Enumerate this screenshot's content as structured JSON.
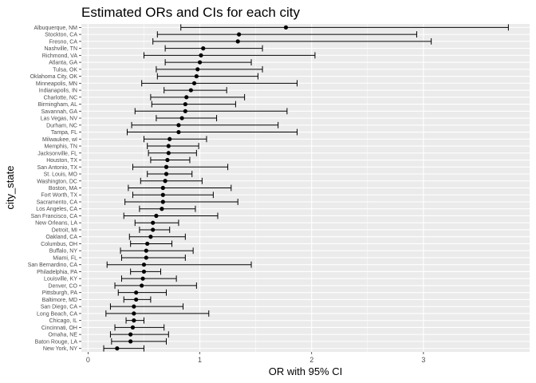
{
  "chart_data": {
    "type": "scatter",
    "title": "Estimated ORs and CIs for each city",
    "xlabel": "OR with 95% CI",
    "ylabel": "city_state",
    "xlim": [
      -0.06,
      3.95
    ],
    "xticks": [
      0,
      1,
      2,
      3
    ],
    "grid": true,
    "background_color": "#ebebeb",
    "grid_color": "#ffffff",
    "point_color": "#000000",
    "points": [
      {
        "city": "Albuquerque, NM",
        "or": 1.77,
        "lo": 0.83,
        "hi": 3.76
      },
      {
        "city": "Stockton, CA",
        "or": 1.35,
        "lo": 0.62,
        "hi": 2.94
      },
      {
        "city": "Fresno, CA",
        "or": 1.34,
        "lo": 0.58,
        "hi": 3.07
      },
      {
        "city": "Nashville, TN",
        "or": 1.03,
        "lo": 0.69,
        "hi": 1.56
      },
      {
        "city": "Richmond, VA",
        "or": 1.01,
        "lo": 0.5,
        "hi": 2.03
      },
      {
        "city": "Atlanta, GA",
        "or": 1.0,
        "lo": 0.69,
        "hi": 1.46
      },
      {
        "city": "Tulsa, OK",
        "or": 0.98,
        "lo": 0.61,
        "hi": 1.56
      },
      {
        "city": "Oklahoma City, OK",
        "or": 0.97,
        "lo": 0.62,
        "hi": 1.52
      },
      {
        "city": "Minneapolis, MN",
        "or": 0.95,
        "lo": 0.48,
        "hi": 1.87
      },
      {
        "city": "Indianapolis, IN",
        "or": 0.92,
        "lo": 0.68,
        "hi": 1.24
      },
      {
        "city": "Charlotte, NC",
        "or": 0.88,
        "lo": 0.56,
        "hi": 1.4
      },
      {
        "city": "Birmingham, AL",
        "or": 0.87,
        "lo": 0.57,
        "hi": 1.32
      },
      {
        "city": "Savannah, GA",
        "or": 0.87,
        "lo": 0.42,
        "hi": 1.78
      },
      {
        "city": "Las Vegas, NV",
        "or": 0.84,
        "lo": 0.61,
        "hi": 1.15
      },
      {
        "city": "Durham, NC",
        "or": 0.81,
        "lo": 0.39,
        "hi": 1.7
      },
      {
        "city": "Tampa, FL",
        "or": 0.81,
        "lo": 0.35,
        "hi": 1.87
      },
      {
        "city": "Milwaukee, wI",
        "or": 0.73,
        "lo": 0.5,
        "hi": 1.06
      },
      {
        "city": "Memphis, TN",
        "or": 0.72,
        "lo": 0.53,
        "hi": 0.99
      },
      {
        "city": "Jacksonville, FL",
        "or": 0.72,
        "lo": 0.54,
        "hi": 0.97
      },
      {
        "city": "Houston, TX",
        "or": 0.71,
        "lo": 0.56,
        "hi": 0.91
      },
      {
        "city": "San Antonio, TX",
        "or": 0.7,
        "lo": 0.4,
        "hi": 1.25
      },
      {
        "city": "St. Louis, MO",
        "or": 0.7,
        "lo": 0.53,
        "hi": 0.93
      },
      {
        "city": "Washington, DC",
        "or": 0.69,
        "lo": 0.47,
        "hi": 1.02
      },
      {
        "city": "Boston, MA",
        "or": 0.67,
        "lo": 0.36,
        "hi": 1.28
      },
      {
        "city": "Fort Worth, TX",
        "or": 0.67,
        "lo": 0.4,
        "hi": 1.12
      },
      {
        "city": "Sacramento, CA",
        "or": 0.67,
        "lo": 0.33,
        "hi": 1.34
      },
      {
        "city": "Los Angeles, CA",
        "or": 0.66,
        "lo": 0.46,
        "hi": 0.96
      },
      {
        "city": "San Francisco, CA",
        "or": 0.61,
        "lo": 0.32,
        "hi": 1.16
      },
      {
        "city": "New Orleans, LA",
        "or": 0.58,
        "lo": 0.42,
        "hi": 0.81
      },
      {
        "city": "Detroit, MI",
        "or": 0.58,
        "lo": 0.46,
        "hi": 0.73
      },
      {
        "city": "Oakland, CA",
        "or": 0.56,
        "lo": 0.37,
        "hi": 0.87
      },
      {
        "city": "Columbus, OH",
        "or": 0.53,
        "lo": 0.38,
        "hi": 0.75
      },
      {
        "city": "Buffalo, NY",
        "or": 0.52,
        "lo": 0.29,
        "hi": 0.94
      },
      {
        "city": "Miami, FL",
        "or": 0.52,
        "lo": 0.3,
        "hi": 0.87
      },
      {
        "city": "San Bernardino, CA",
        "or": 0.5,
        "lo": 0.17,
        "hi": 1.46
      },
      {
        "city": "Philadelphia, PA",
        "or": 0.5,
        "lo": 0.38,
        "hi": 0.65
      },
      {
        "city": "Louisville, KY",
        "or": 0.49,
        "lo": 0.3,
        "hi": 0.79
      },
      {
        "city": "Denver, CO",
        "or": 0.48,
        "lo": 0.24,
        "hi": 0.97
      },
      {
        "city": "Pittsburgh, PA",
        "or": 0.43,
        "lo": 0.27,
        "hi": 0.7
      },
      {
        "city": "Baltimore, MD",
        "or": 0.43,
        "lo": 0.32,
        "hi": 0.56
      },
      {
        "city": "San Diego, CA",
        "or": 0.41,
        "lo": 0.2,
        "hi": 0.85
      },
      {
        "city": "Long Beach, CA",
        "or": 0.41,
        "lo": 0.16,
        "hi": 1.08
      },
      {
        "city": "Chicago, IL",
        "or": 0.41,
        "lo": 0.34,
        "hi": 0.5
      },
      {
        "city": "Cincinnati, OH",
        "or": 0.4,
        "lo": 0.24,
        "hi": 0.68
      },
      {
        "city": "Omaha, NE",
        "or": 0.38,
        "lo": 0.2,
        "hi": 0.72
      },
      {
        "city": "Baton Rouge, LA",
        "or": 0.38,
        "lo": 0.21,
        "hi": 0.7
      },
      {
        "city": "New York, NY",
        "or": 0.26,
        "lo": 0.14,
        "hi": 0.5
      }
    ]
  }
}
